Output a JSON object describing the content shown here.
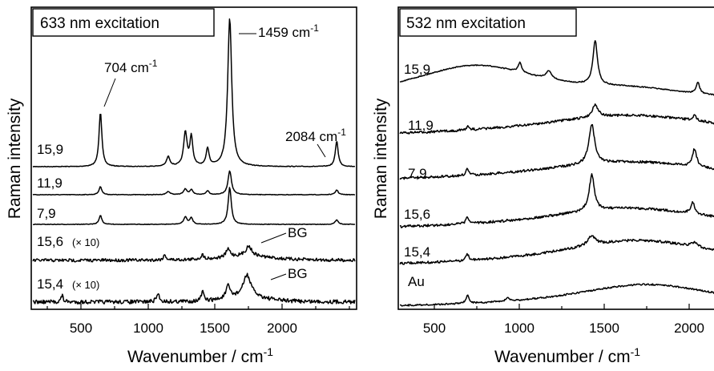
{
  "chart_data": [
    {
      "type": "line",
      "title": "633 nm excitation",
      "xlabel": "Wavenumber / cm⁻¹",
      "ylabel": "Raman intensity",
      "xlim": [
        300,
        2200
      ],
      "xticks": [
        500,
        1000,
        1500,
        2000
      ],
      "grid": false,
      "series": [
        {
          "name": "15,9",
          "peaks": [
            704,
            1100,
            1200,
            1235,
            1330,
            1459,
            2084
          ]
        },
        {
          "name": "11,9",
          "peaks": [
            704,
            1100,
            1200,
            1235,
            1330,
            1459,
            2084
          ]
        },
        {
          "name": "7,9",
          "peaks": [
            704,
            1200,
            1235,
            1459,
            2084
          ]
        },
        {
          "name": "15,6 (× 10)",
          "peaks": [
            1080,
            1300,
            1450,
            1570
          ]
        },
        {
          "name": "15,4 (× 10)",
          "peaks": [
            480,
            1040,
            1300,
            1450,
            1560
          ]
        }
      ],
      "annotations": [
        {
          "text": "704 cm⁻¹",
          "x": 704
        },
        {
          "text": "1459 cm⁻¹",
          "x": 1459
        },
        {
          "text": "2084 cm⁻¹",
          "x": 2084
        },
        {
          "text": "BG",
          "series": "15,6 (× 10)"
        },
        {
          "text": "BG",
          "series": "15,4 (× 10)"
        }
      ]
    },
    {
      "type": "line",
      "title": "532 nm excitation",
      "xlabel": "Wavenumber / cm⁻¹",
      "ylabel": "Raman intensity",
      "xlim": [
        300,
        2200
      ],
      "xticks": [
        500,
        1000,
        1500,
        2000
      ],
      "grid": false,
      "series": [
        {
          "name": "15,9",
          "peaks": [
            680,
            1010,
            1180,
            1450,
            2050
          ]
        },
        {
          "name": "11,9",
          "peaks": [
            704,
            1450,
            2030
          ]
        },
        {
          "name": "7,9",
          "peaks": [
            704,
            1430,
            2030
          ]
        },
        {
          "name": "15,6",
          "peaks": [
            704,
            1430,
            2020
          ]
        },
        {
          "name": "15,4",
          "peaks": [
            704,
            1430,
            2030
          ]
        },
        {
          "name": "Au",
          "peaks": [
            704,
            940
          ]
        }
      ]
    }
  ],
  "text": {
    "left_title": "633 nm excitation",
    "right_title": "532 nm excitation",
    "ylabel": "Raman intensity",
    "xlabel_main": "Wavenumber / cm",
    "xlabel_sup": "-1",
    "tick_500": "500",
    "tick_1000": "1000",
    "tick_1500": "1500",
    "tick_2000": "2000",
    "ann_704_main": "704 cm",
    "ann_1459_main": "1459 cm",
    "ann_2084_main": "2084 cm",
    "ann_sup": "-1",
    "bg": "BG",
    "l_159": "15,9",
    "l_119": "11,9",
    "l_79": "7,9",
    "l_156": "15,6",
    "l_154": "15,4",
    "l_x10": "(× 10)",
    "r_159": "15,9",
    "r_119": "11,9",
    "r_79": "7,9",
    "r_156": "15,6",
    "r_154": "15,4",
    "r_au": "Au"
  }
}
